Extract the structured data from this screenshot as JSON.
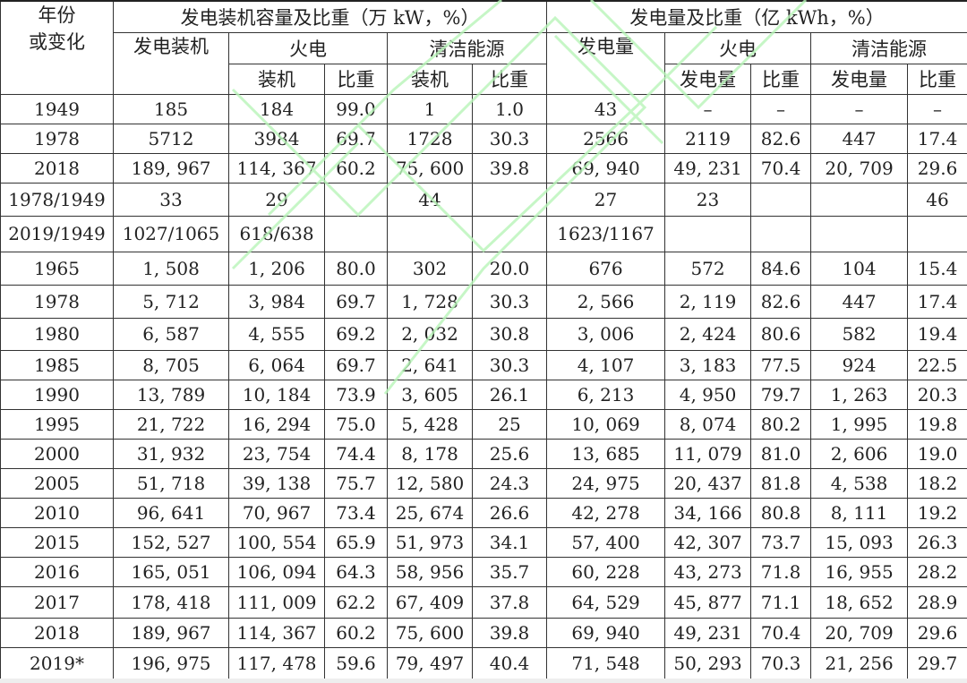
{
  "header": {
    "year": "年份\n或变化",
    "capacity_group": "发电装机容量及比重（万 kW，%）",
    "generation_group": "发电量及比重（亿 kWh，%）",
    "installed": "发电装机",
    "thermal": "火电",
    "clean": "清洁能源",
    "generation": "发电量",
    "sub_installed": "装机",
    "sub_share": "比重",
    "sub_generation": "发电量"
  },
  "rows": [
    [
      "1949",
      "185",
      "184",
      "99.0",
      "1",
      "1.0",
      "43",
      "–",
      "–",
      "–",
      "–"
    ],
    [
      "1978",
      "5712",
      "3984",
      "69.7",
      "1728",
      "30.3",
      "2566",
      "2119",
      "82.6",
      "447",
      "17.4"
    ],
    [
      "2018",
      "189, 967",
      "114, 367",
      "60.2",
      "75, 600",
      "39.8",
      "69, 940",
      "49, 231",
      "70.4",
      "20, 709",
      "29.6"
    ],
    [
      "1978/1949",
      "33",
      "29",
      "",
      "44",
      "",
      "27",
      "23",
      "",
      "",
      "46"
    ],
    [
      "2019/1949",
      "1027/1065",
      "618/638",
      "",
      "",
      "",
      "1623/1167",
      "",
      "",
      "",
      ""
    ],
    [
      "1965",
      "1, 508",
      "1, 206",
      "80.0",
      "302",
      "20.0",
      "676",
      "572",
      "84.6",
      "104",
      "15.4"
    ],
    [
      "1978",
      "5, 712",
      "3, 984",
      "69.7",
      "1, 728",
      "30.3",
      "2, 566",
      "2, 119",
      "82.6",
      "447",
      "17.4"
    ],
    [
      "1980",
      "6, 587",
      "4, 555",
      "69.2",
      "2, 032",
      "30.8",
      "3, 006",
      "2, 424",
      "80.6",
      "582",
      "19.4"
    ],
    [
      "1985",
      "8, 705",
      "6, 064",
      "69.7",
      "2, 641",
      "30.3",
      "4, 107",
      "3, 183",
      "77.5",
      "924",
      "22.5"
    ],
    [
      "1990",
      "13, 789",
      "10, 184",
      "73.9",
      "3, 605",
      "26.1",
      "6, 213",
      "4, 950",
      "79.7",
      "1, 263",
      "20.3"
    ],
    [
      "1995",
      "21, 722",
      "16, 294",
      "75.0",
      "5, 428",
      "25",
      "10, 069",
      "8, 074",
      "80.2",
      "1, 995",
      "19.8"
    ],
    [
      "2000",
      "31, 932",
      "23, 754",
      "74.4",
      "8, 178",
      "25.6",
      "13, 685",
      "11, 079",
      "81.0",
      "2, 606",
      "19.0"
    ],
    [
      "2005",
      "51, 718",
      "39, 138",
      "75.7",
      "12, 580",
      "24.3",
      "24, 975",
      "20, 437",
      "81.8",
      "4, 538",
      "18.2"
    ],
    [
      "2010",
      "96, 641",
      "70, 967",
      "73.4",
      "25, 674",
      "26.6",
      "42, 278",
      "34, 166",
      "80.8",
      "8, 111",
      "19.2"
    ],
    [
      "2015",
      "152, 527",
      "100, 554",
      "65.9",
      "51, 973",
      "34.1",
      "57, 400",
      "42, 307",
      "73.7",
      "15, 093",
      "26.3"
    ],
    [
      "2016",
      "165, 051",
      "106, 094",
      "64.3",
      "58, 956",
      "35.7",
      "60, 228",
      "43, 273",
      "71.8",
      "16, 955",
      "28.2"
    ],
    [
      "2017",
      "178, 418",
      "111, 009",
      "62.2",
      "67, 409",
      "37.8",
      "64, 529",
      "45, 877",
      "71.1",
      "18, 652",
      "28.9"
    ],
    [
      "2018",
      "189, 967",
      "114, 367",
      "60.2",
      "75, 600",
      "39.8",
      "69, 940",
      "49, 231",
      "70.4",
      "20, 709",
      "29.6"
    ],
    [
      "2019*",
      "196, 975",
      "117, 478",
      "59.6",
      "79, 497",
      "40.4",
      "71, 548",
      "50, 293",
      "70.3",
      "21, 256",
      "29.7"
    ]
  ],
  "colors": {
    "border": "#333333",
    "watermark": "#b8f5b8"
  }
}
